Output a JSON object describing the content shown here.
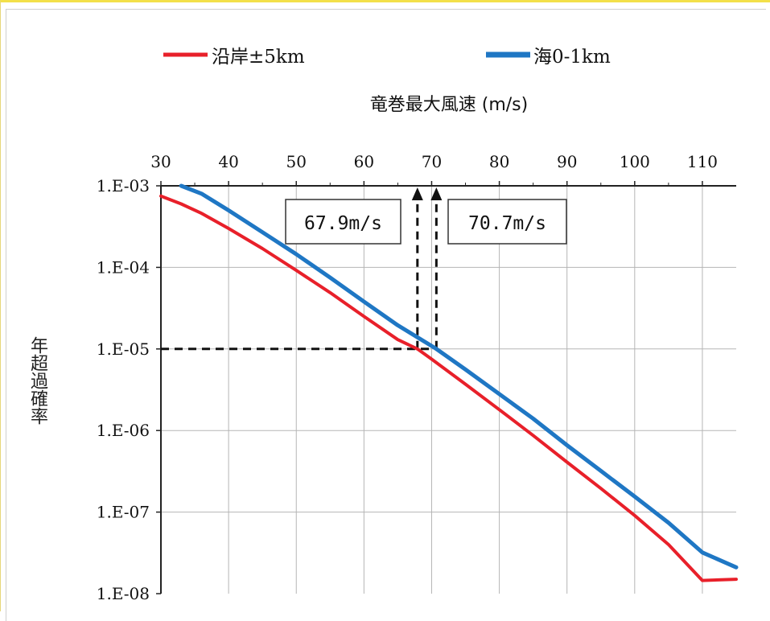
{
  "chart_data": {
    "type": "line",
    "title": "竜巻最大風速 (m/s)",
    "ylabel": "年超過確率",
    "x_axis_position": "top",
    "y_scale": "log",
    "xlim": [
      30,
      115
    ],
    "ylim": [
      1e-08,
      0.001
    ],
    "x_ticks": [
      "30",
      "40",
      "50",
      "60",
      "70",
      "80",
      "90",
      "100",
      "110"
    ],
    "y_ticks": [
      "1.E-03",
      "1.E-04",
      "1.E-05",
      "1.E-06",
      "1.E-07",
      "1.E-08"
    ],
    "grid": true,
    "legend_position": "top",
    "series": [
      {
        "name": "沿岸±5km",
        "color": "#e8202a",
        "x": [
          30,
          33,
          36,
          40,
          45,
          50,
          55,
          60,
          65,
          67.9,
          70,
          75,
          80,
          85,
          90,
          95,
          100,
          105,
          110,
          115
        ],
        "y": [
          0.00075,
          0.0006,
          0.00046,
          0.0003,
          0.00017,
          9.2e-05,
          4.9e-05,
          2.5e-05,
          1.3e-05,
          1e-05,
          7.5e-06,
          3.7e-06,
          1.8e-06,
          8.7e-07,
          4.1e-07,
          1.95e-07,
          9.1e-08,
          4e-08,
          1.45e-08,
          1.5e-08
        ]
      },
      {
        "name": "海0-1km",
        "color": "#1f77c4",
        "x": [
          33,
          36,
          40,
          45,
          50,
          55,
          60,
          65,
          70.7,
          75,
          80,
          85,
          90,
          95,
          100,
          105,
          110,
          115
        ],
        "y": [
          0.001,
          0.0008,
          0.0005,
          0.00027,
          0.000145,
          7.5e-05,
          3.8e-05,
          1.95e-05,
          1e-05,
          5.6e-06,
          2.8e-06,
          1.4e-06,
          6.6e-07,
          3.2e-07,
          1.55e-07,
          7.4e-08,
          3.2e-08,
          2.1e-08
        ]
      }
    ],
    "reference_line": {
      "y": 1e-05,
      "style": "dashed"
    },
    "annotations": [
      {
        "text": "67.9m/s",
        "x": 67.9
      },
      {
        "text": "70.7m/s",
        "x": 70.7
      }
    ]
  }
}
